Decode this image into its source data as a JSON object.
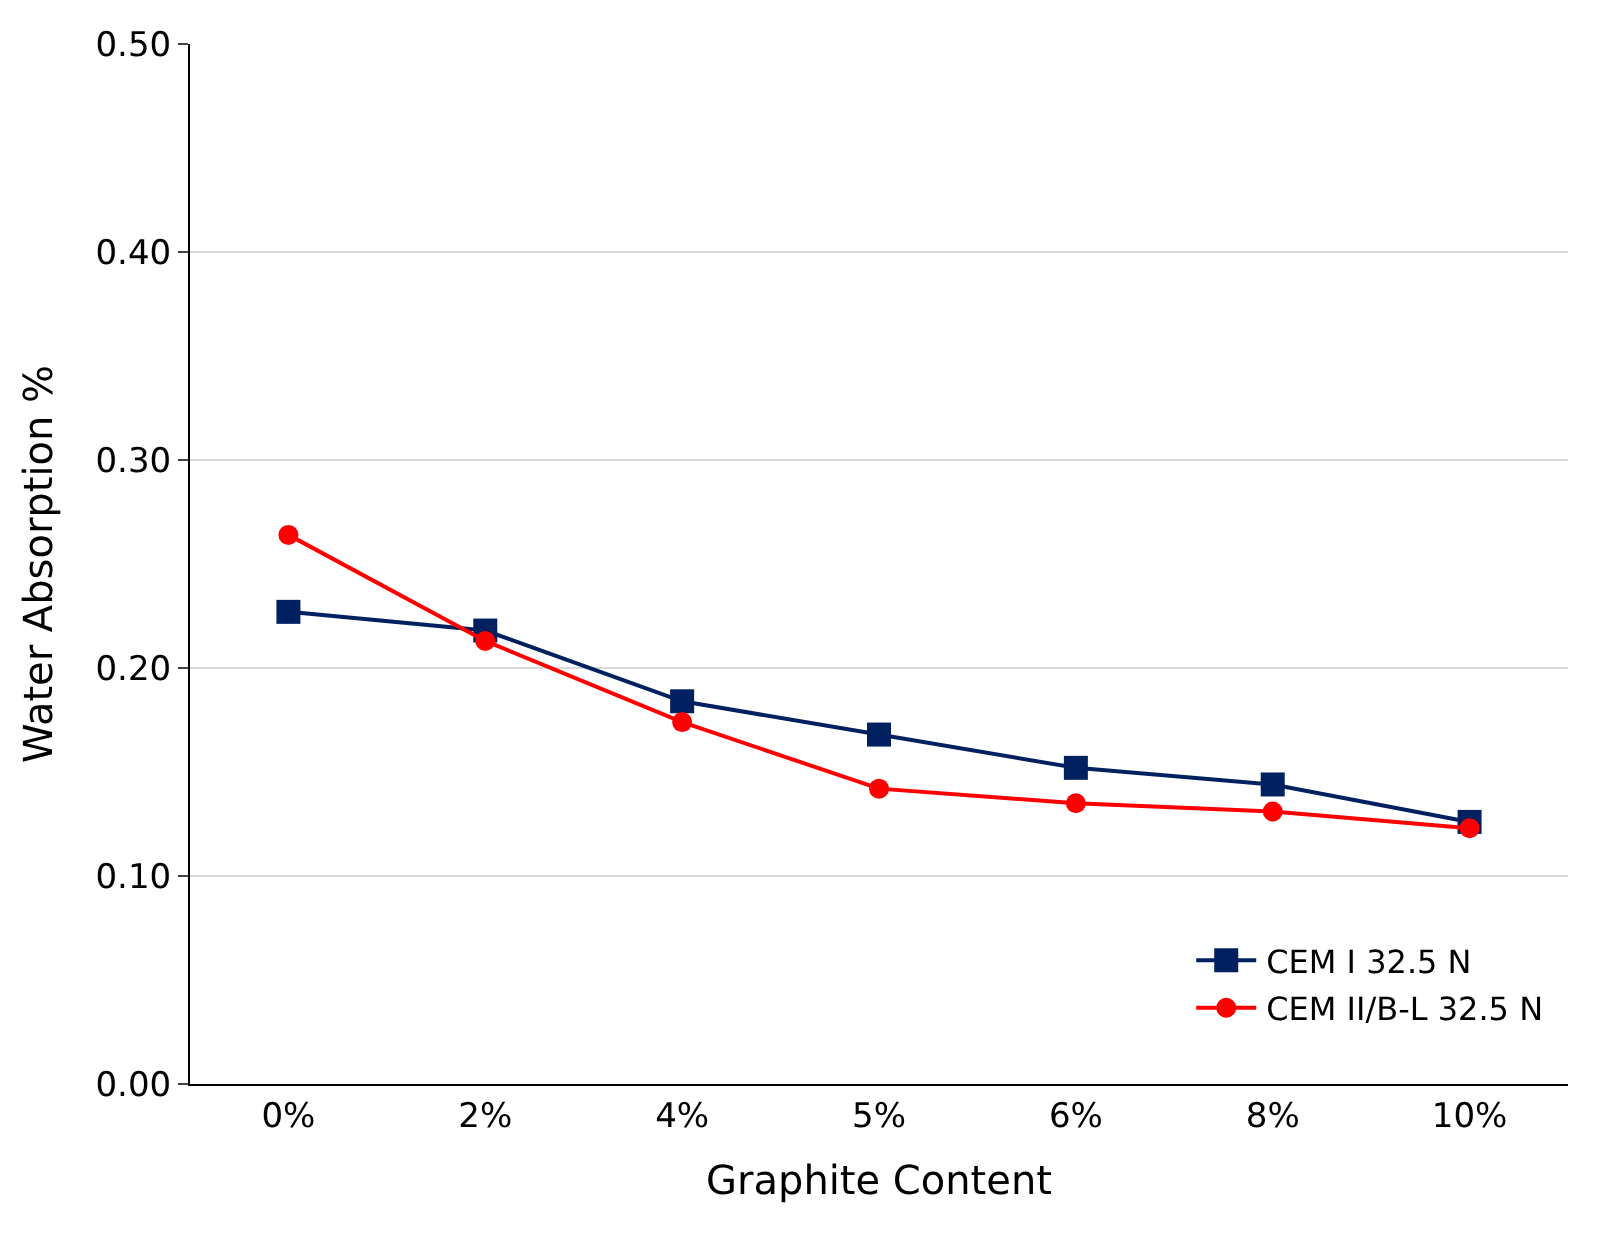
{
  "chart_data": {
    "type": "line",
    "xlabel": "Graphite Content",
    "ylabel": "Water Absorption %",
    "categories": [
      "0%",
      "2%",
      "4%",
      "5%",
      "6%",
      "8%",
      "10%"
    ],
    "series": [
      {
        "name": "CEM I 32.5 N",
        "color": "#002060",
        "marker": "square",
        "values": [
          0.227,
          0.218,
          0.184,
          0.168,
          0.152,
          0.144,
          0.126
        ]
      },
      {
        "name": "CEM II/B-L 32.5 N",
        "color": "#ff0000",
        "marker": "circle",
        "values": [
          0.264,
          0.213,
          0.174,
          0.142,
          0.135,
          0.131,
          0.123
        ]
      }
    ],
    "ylim": [
      0,
      0.5
    ],
    "yticks": [
      {
        "value": 0,
        "label": "0.00"
      },
      {
        "value": 0.1,
        "label": "0.10"
      },
      {
        "value": 0.2,
        "label": "0.20"
      },
      {
        "value": 0.3,
        "label": "0.30"
      },
      {
        "value": 0.4,
        "label": "0.40"
      },
      {
        "value": 0.5,
        "label": "0.50"
      }
    ],
    "grid": "y",
    "legend": "bottom right"
  }
}
